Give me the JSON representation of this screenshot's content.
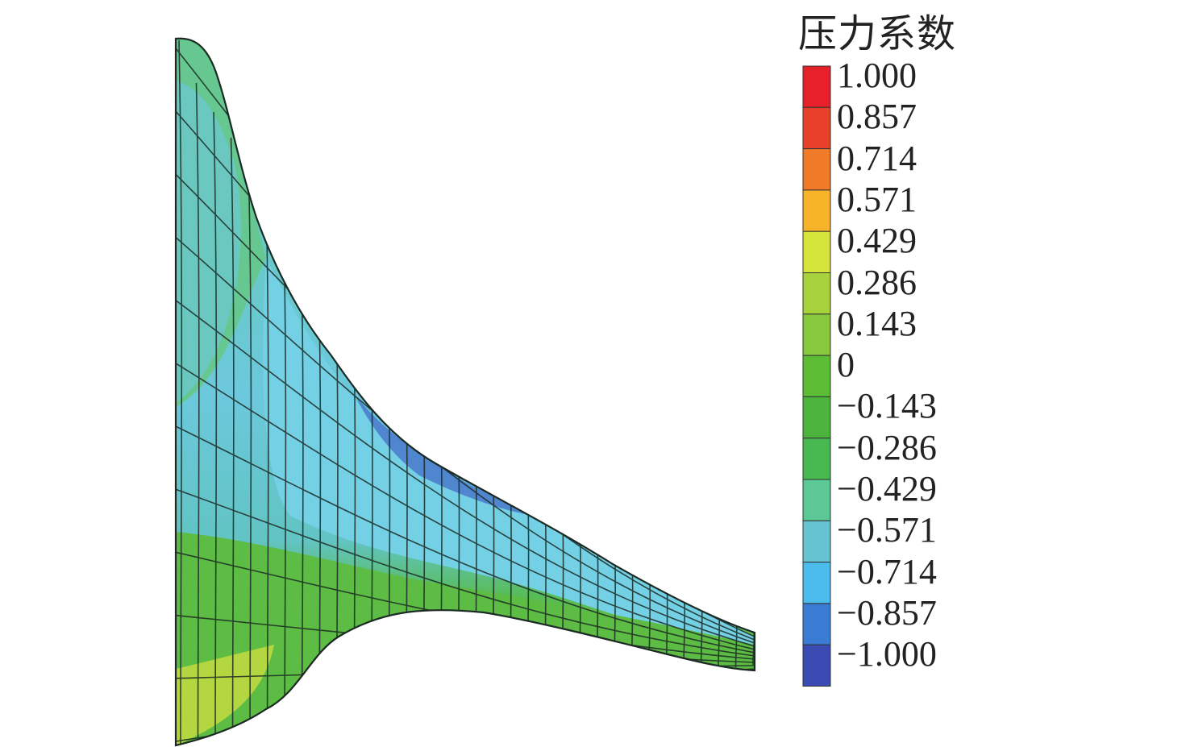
{
  "legend": {
    "title": "压力系数",
    "levels": [
      {
        "label": "1.000",
        "color": "#e8202a"
      },
      {
        "label": "0.857",
        "color": "#e8402a"
      },
      {
        "label": "0.714",
        "color": "#f07a28"
      },
      {
        "label": "0.571",
        "color": "#f8b428"
      },
      {
        "label": "0.429",
        "color": "#d4e43a"
      },
      {
        "label": "0.286",
        "color": "#a8d23c"
      },
      {
        "label": "0.143",
        "color": "#88c83c"
      },
      {
        "label": "0",
        "color": "#5cbc34"
      },
      {
        "label": "−0.143",
        "color": "#4cb43c"
      },
      {
        "label": "−0.286",
        "color": "#48b850"
      },
      {
        "label": "−0.429",
        "color": "#5cc896"
      },
      {
        "label": "−0.571",
        "color": "#66c4d0"
      },
      {
        "label": "−0.714",
        "color": "#4cbcec"
      },
      {
        "label": "−0.857",
        "color": "#3a7cd4"
      },
      {
        "label": "−1.000",
        "color": "#3a4cb4"
      }
    ]
  },
  "surface": {
    "fill_colors": {
      "tip": "#58c038",
      "upper": "#66c8b4",
      "mid": "#6cc8dc",
      "leading_edge_low": "#3a7cd4",
      "lower": "#6cc03c",
      "root_bottom": "#c8dc40"
    }
  }
}
